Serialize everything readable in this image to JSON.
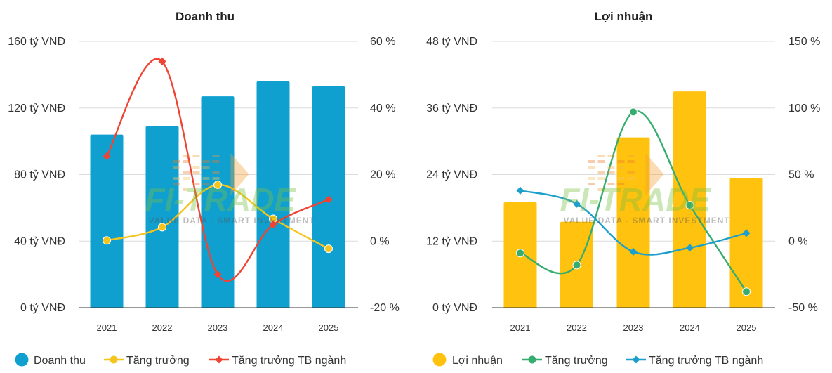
{
  "watermark": {
    "logo_text": "FI-TRADE",
    "tagline": "VALUE DATA - SMART INVESTMENT"
  },
  "chart_data": [
    {
      "type": "bar",
      "title": "Doanh thu",
      "categories": [
        "2021",
        "2022",
        "2023",
        "2024",
        "2025"
      ],
      "series": [
        {
          "name": "Doanh thu",
          "kind": "bar",
          "axis": "left",
          "color": "#0fa0d0",
          "values": [
            104,
            109,
            127,
            136,
            133
          ]
        },
        {
          "name": "Tăng trưởng",
          "kind": "line",
          "axis": "right",
          "color": "#f5c51e",
          "marker": "circle",
          "values": [
            0.2,
            4.2,
            16.9,
            6.7,
            -2.3
          ]
        },
        {
          "name": "Tăng trưởng TB ngành",
          "kind": "line",
          "axis": "right",
          "color": "#ef4433",
          "marker": "diamond",
          "values": [
            25.5,
            54,
            -10,
            5,
            12.5
          ]
        }
      ],
      "left_axis": {
        "ticks": [
          "160 tỷ VNĐ",
          "120 tỷ VNĐ",
          "80 tỷ VNĐ",
          "40 tỷ VNĐ",
          "0 tỷ VNĐ"
        ],
        "range": [
          0,
          160
        ]
      },
      "right_axis": {
        "ticks": [
          "60 %",
          "40 %",
          "20 %",
          "0 %",
          "-20 %"
        ],
        "range": [
          -20,
          60
        ]
      },
      "grid": true,
      "legend_position": "bottom"
    },
    {
      "type": "bar",
      "title": "Lợi nhuận",
      "categories": [
        "2021",
        "2022",
        "2023",
        "2024",
        "2025"
      ],
      "series": [
        {
          "name": "Lợi nhuận",
          "kind": "bar",
          "axis": "left",
          "color": "#ffc20e",
          "values": [
            19,
            15.5,
            30.7,
            39,
            23.4
          ]
        },
        {
          "name": "Tăng trưởng",
          "kind": "line",
          "axis": "right",
          "color": "#36ad6e",
          "marker": "circle",
          "values": [
            -9,
            -18,
            97,
            27,
            -38
          ]
        },
        {
          "name": "Tăng trưởng TB ngành",
          "kind": "line",
          "axis": "right",
          "color": "#1d9fcc",
          "marker": "diamond",
          "values": [
            38,
            28,
            -8,
            -5,
            6
          ]
        }
      ],
      "left_axis": {
        "ticks": [
          "48 tỷ VNĐ",
          "36 tỷ VNĐ",
          "24 tỷ VNĐ",
          "12 tỷ VNĐ",
          "0 tỷ VNĐ"
        ],
        "range": [
          0,
          48
        ]
      },
      "right_axis": {
        "ticks": [
          "150 %",
          "100 %",
          "50 %",
          "0 %",
          "-50 %"
        ],
        "range": [
          -50,
          150
        ]
      },
      "grid": true,
      "legend_position": "bottom"
    }
  ]
}
